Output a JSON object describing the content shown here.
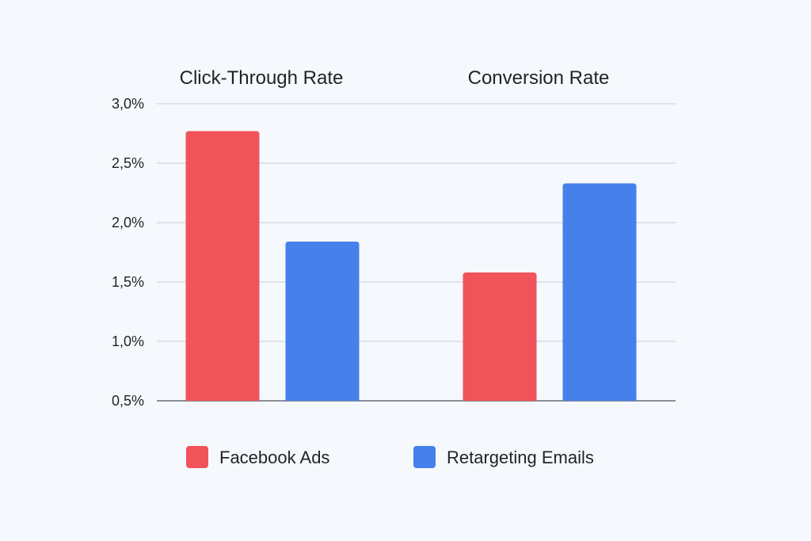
{
  "colors": {
    "facebook": "#f0545a",
    "retargeting": "#4680ea",
    "background": "#f5f8fc"
  },
  "chart_data": {
    "type": "bar",
    "categories": [
      "Click-Through Rate",
      "Conversion Rate"
    ],
    "series": [
      {
        "name": "Facebook Ads",
        "values": [
          2.77,
          1.58
        ],
        "color": "#f0545a"
      },
      {
        "name": "Retargeting Emails",
        "values": [
          1.84,
          2.33
        ],
        "color": "#4680ea"
      }
    ],
    "y_ticks": [
      "0,5%",
      "1,0%",
      "1,5%",
      "2,0%",
      "2,5%",
      "3,0%"
    ],
    "y_tick_values": [
      0.5,
      1.0,
      1.5,
      2.0,
      2.5,
      3.0
    ],
    "ylim": [
      0.5,
      3.0
    ],
    "grid": true,
    "legend_position": "bottom",
    "xlabel": "",
    "ylabel": ""
  }
}
